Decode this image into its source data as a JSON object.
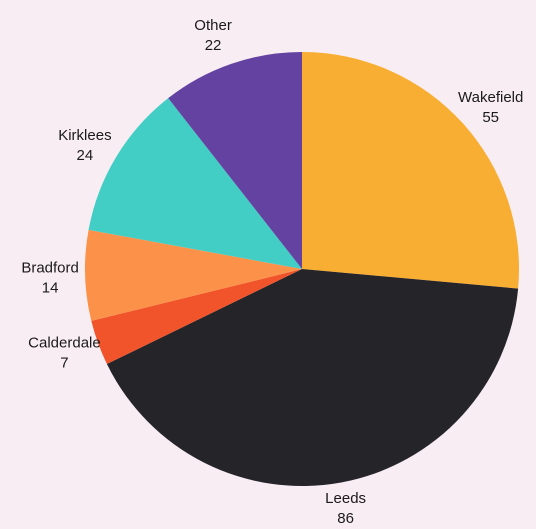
{
  "chart_data": {
    "type": "pie",
    "title": "",
    "start_angle_deg": 0,
    "direction": "clockwise",
    "background": "#f8edf3",
    "slices": [
      {
        "label": "Wakefield",
        "value": 55,
        "color": "#f8ae32"
      },
      {
        "label": "Leeds",
        "value": 86,
        "color": "#252429"
      },
      {
        "label": "Calderdale",
        "value": 7,
        "color": "#f1542b"
      },
      {
        "label": "Bradford",
        "value": 14,
        "color": "#fc9249"
      },
      {
        "label": "Kirklees",
        "value": 24,
        "color": "#43cec5"
      },
      {
        "label": "Other",
        "value": 22,
        "color": "#6342a1"
      }
    ]
  }
}
